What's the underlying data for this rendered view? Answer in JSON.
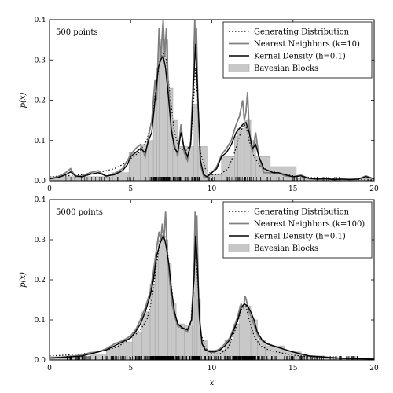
{
  "figure": {
    "xlabel": "x",
    "ylabel": "p(x)"
  },
  "colors": {
    "generating": "#000000",
    "nearest_neighbors": "#808080",
    "kernel_density": "#000000",
    "bayesian_blocks_fill": "#c8c8c8",
    "bayesian_blocks_edge": "#a6a6a6",
    "rug": "#000000"
  },
  "chart_data": [
    {
      "type": "line",
      "panel_label": "500 points",
      "xlim": [
        0,
        20
      ],
      "ylim": [
        0,
        0.4
      ],
      "xticks": [
        0,
        5,
        10,
        15,
        20
      ],
      "yticks": [
        0.0,
        0.1,
        0.2,
        0.3,
        0.4
      ],
      "xtick_labels": [
        "0",
        "5",
        "10",
        "15",
        "20"
      ],
      "ytick_labels": [
        "0.0",
        "0.1",
        "0.2",
        "0.3",
        "0.4"
      ],
      "legend_position": "top-right",
      "legend": [
        {
          "label": "Generating Distribution",
          "style": "dotted"
        },
        {
          "label": "Nearest Neighbors (k=10)",
          "style": "gray-line"
        },
        {
          "label": "Kernel Density (h=0.1)",
          "style": "black-line"
        },
        {
          "label": "Bayesian Blocks",
          "style": "filled-box"
        }
      ],
      "bayesian_blocks": [
        {
          "x0": 0.0,
          "x1": 3.9,
          "y": 0.01
        },
        {
          "x0": 3.9,
          "x1": 4.9,
          "y": 0.02
        },
        {
          "x0": 4.9,
          "x1": 5.6,
          "y": 0.07
        },
        {
          "x0": 5.6,
          "x1": 6.1,
          "y": 0.09
        },
        {
          "x0": 6.1,
          "x1": 6.4,
          "y": 0.1
        },
        {
          "x0": 6.4,
          "x1": 6.6,
          "y": 0.21
        },
        {
          "x0": 6.6,
          "x1": 6.75,
          "y": 0.28
        },
        {
          "x0": 6.75,
          "x1": 7.3,
          "y": 0.35
        },
        {
          "x0": 7.3,
          "x1": 7.6,
          "y": 0.23
        },
        {
          "x0": 7.6,
          "x1": 7.9,
          "y": 0.15
        },
        {
          "x0": 7.9,
          "x1": 8.9,
          "y": 0.085
        },
        {
          "x0": 8.9,
          "x1": 9.15,
          "y": 0.19
        },
        {
          "x0": 9.15,
          "x1": 9.7,
          "y": 0.085
        },
        {
          "x0": 9.7,
          "x1": 10.6,
          "y": 0.015
        },
        {
          "x0": 10.6,
          "x1": 11.4,
          "y": 0.06
        },
        {
          "x0": 11.4,
          "x1": 11.6,
          "y": 0.11
        },
        {
          "x0": 11.6,
          "x1": 12.0,
          "y": 0.13
        },
        {
          "x0": 12.0,
          "x1": 12.4,
          "y": 0.15
        },
        {
          "x0": 12.4,
          "x1": 12.7,
          "y": 0.1
        },
        {
          "x0": 12.7,
          "x1": 13.6,
          "y": 0.06
        },
        {
          "x0": 13.6,
          "x1": 15.2,
          "y": 0.035
        },
        {
          "x0": 15.2,
          "x1": 20.0,
          "y": 0.005
        }
      ],
      "kernel_density": {
        "x": [
          0,
          0.5,
          1.0,
          1.3,
          1.6,
          2.0,
          2.5,
          3.0,
          3.5,
          4.0,
          4.5,
          4.8,
          5.0,
          5.3,
          5.6,
          5.9,
          6.1,
          6.3,
          6.5,
          6.7,
          6.85,
          7.0,
          7.15,
          7.3,
          7.5,
          7.7,
          7.9,
          8.1,
          8.3,
          8.5,
          8.7,
          8.85,
          9.0,
          9.15,
          9.3,
          9.5,
          9.7,
          10.0,
          10.3,
          10.6,
          10.9,
          11.2,
          11.5,
          11.7,
          11.9,
          12.1,
          12.3,
          12.5,
          12.7,
          12.9,
          13.2,
          13.5,
          13.8,
          14.1,
          14.5,
          15.0,
          15.5,
          16.0,
          16.5,
          17.0,
          17.5,
          18.0,
          18.5,
          19.0,
          19.5,
          20.0
        ],
        "y": [
          0.005,
          0.008,
          0.015,
          0.022,
          0.012,
          0.01,
          0.016,
          0.02,
          0.012,
          0.015,
          0.025,
          0.04,
          0.06,
          0.07,
          0.08,
          0.07,
          0.1,
          0.12,
          0.2,
          0.28,
          0.3,
          0.31,
          0.28,
          0.22,
          0.13,
          0.08,
          0.07,
          0.12,
          0.08,
          0.06,
          0.09,
          0.22,
          0.34,
          0.2,
          0.05,
          0.015,
          0.01,
          0.02,
          0.03,
          0.06,
          0.07,
          0.09,
          0.12,
          0.13,
          0.14,
          0.145,
          0.12,
          0.08,
          0.09,
          0.06,
          0.03,
          0.025,
          0.02,
          0.02,
          0.015,
          0.01,
          0.012,
          0.006,
          0.004,
          0.005,
          0.003,
          0.004,
          0.003,
          0.004,
          0.01,
          0.005
        ]
      },
      "nearest_neighbors": {
        "x": [
          0,
          0.5,
          1.0,
          1.3,
          1.6,
          2.0,
          2.5,
          3.0,
          3.5,
          4.0,
          4.5,
          4.8,
          5.0,
          5.3,
          5.6,
          5.9,
          6.1,
          6.3,
          6.5,
          6.6,
          6.75,
          6.85,
          7.0,
          7.1,
          7.2,
          7.3,
          7.5,
          7.7,
          7.9,
          8.1,
          8.3,
          8.5,
          8.7,
          8.85,
          8.95,
          9.0,
          9.05,
          9.15,
          9.3,
          9.5,
          9.7,
          10.0,
          10.3,
          10.6,
          10.9,
          11.2,
          11.5,
          11.7,
          11.9,
          12.0,
          12.1,
          12.2,
          12.3,
          12.5,
          12.7,
          12.9,
          13.2,
          13.5,
          13.8,
          14.1,
          14.5,
          15.0,
          15.5,
          16.0,
          16.5,
          17.0,
          17.5,
          18.0,
          18.5,
          19.0,
          19.5,
          20.0
        ],
        "y": [
          0.004,
          0.01,
          0.02,
          0.03,
          0.01,
          0.012,
          0.02,
          0.025,
          0.01,
          0.018,
          0.03,
          0.05,
          0.065,
          0.08,
          0.09,
          0.06,
          0.11,
          0.15,
          0.25,
          0.2,
          0.38,
          0.3,
          0.4,
          0.31,
          0.38,
          0.25,
          0.12,
          0.09,
          0.06,
          0.14,
          0.07,
          0.05,
          0.1,
          0.25,
          0.4,
          0.3,
          0.38,
          0.18,
          0.04,
          0.01,
          0.008,
          0.02,
          0.035,
          0.065,
          0.08,
          0.1,
          0.14,
          0.16,
          0.2,
          0.15,
          0.17,
          0.22,
          0.13,
          0.07,
          0.12,
          0.06,
          0.02,
          0.02,
          0.018,
          0.02,
          0.012,
          0.01,
          0.014,
          0.005,
          0.004,
          0.005,
          0.003,
          0.004,
          0.003,
          0.004,
          0.012,
          0.004
        ]
      },
      "generating": {
        "x": [
          0,
          1,
          2,
          3,
          3.5,
          4,
          4.5,
          5,
          5.5,
          6,
          6.3,
          6.6,
          6.8,
          7.0,
          7.2,
          7.4,
          7.7,
          8.0,
          8.4,
          8.7,
          8.85,
          9.0,
          9.15,
          9.3,
          9.6,
          10.0,
          10.5,
          11.0,
          11.4,
          11.7,
          11.9,
          12.0,
          12.1,
          12.3,
          12.6,
          13.0,
          13.5,
          14.0,
          15.0,
          16.0,
          18.0,
          20.0
        ],
        "y": [
          0.01,
          0.012,
          0.015,
          0.02,
          0.025,
          0.03,
          0.04,
          0.055,
          0.07,
          0.1,
          0.15,
          0.24,
          0.3,
          0.32,
          0.3,
          0.22,
          0.12,
          0.08,
          0.075,
          0.09,
          0.18,
          0.28,
          0.18,
          0.07,
          0.03,
          0.015,
          0.015,
          0.03,
          0.07,
          0.11,
          0.135,
          0.14,
          0.135,
          0.1,
          0.06,
          0.035,
          0.025,
          0.02,
          0.012,
          0.008,
          0.004,
          0.002
        ]
      }
    },
    {
      "type": "line",
      "panel_label": "5000 points",
      "xlim": [
        0,
        20
      ],
      "ylim": [
        0,
        0.4
      ],
      "xticks": [
        0,
        5,
        10,
        15,
        20
      ],
      "yticks": [
        0.0,
        0.1,
        0.2,
        0.3,
        0.4
      ],
      "xtick_labels": [
        "0",
        "5",
        "10",
        "15",
        "20"
      ],
      "ytick_labels": [
        "0.0",
        "0.1",
        "0.2",
        "0.3",
        "0.4"
      ],
      "legend_position": "top-right",
      "legend": [
        {
          "label": "Generating Distribution",
          "style": "dotted"
        },
        {
          "label": "Nearest Neighbors (k=100)",
          "style": "gray-line"
        },
        {
          "label": "Kernel Density (h=0.1)",
          "style": "black-line"
        },
        {
          "label": "Bayesian Blocks",
          "style": "filled-box"
        }
      ],
      "bayesian_blocks": [
        {
          "x0": 0.0,
          "x1": 2.5,
          "y": 0.008
        },
        {
          "x0": 2.5,
          "x1": 3.5,
          "y": 0.015
        },
        {
          "x0": 3.5,
          "x1": 4.3,
          "y": 0.03
        },
        {
          "x0": 4.3,
          "x1": 5.1,
          "y": 0.045
        },
        {
          "x0": 5.1,
          "x1": 5.7,
          "y": 0.07
        },
        {
          "x0": 5.7,
          "x1": 6.2,
          "y": 0.12
        },
        {
          "x0": 6.2,
          "x1": 6.5,
          "y": 0.19
        },
        {
          "x0": 6.5,
          "x1": 6.7,
          "y": 0.25
        },
        {
          "x0": 6.7,
          "x1": 7.3,
          "y": 0.3
        },
        {
          "x0": 7.3,
          "x1": 7.5,
          "y": 0.24
        },
        {
          "x0": 7.5,
          "x1": 7.8,
          "y": 0.14
        },
        {
          "x0": 7.8,
          "x1": 8.3,
          "y": 0.09
        },
        {
          "x0": 8.3,
          "x1": 8.8,
          "y": 0.085
        },
        {
          "x0": 8.8,
          "x1": 8.95,
          "y": 0.17
        },
        {
          "x0": 8.95,
          "x1": 9.1,
          "y": 0.33
        },
        {
          "x0": 9.1,
          "x1": 9.3,
          "y": 0.15
        },
        {
          "x0": 9.3,
          "x1": 9.7,
          "y": 0.05
        },
        {
          "x0": 9.7,
          "x1": 10.8,
          "y": 0.025
        },
        {
          "x0": 10.8,
          "x1": 11.3,
          "y": 0.05
        },
        {
          "x0": 11.3,
          "x1": 11.7,
          "y": 0.09
        },
        {
          "x0": 11.7,
          "x1": 12.4,
          "y": 0.135
        },
        {
          "x0": 12.4,
          "x1": 12.8,
          "y": 0.1
        },
        {
          "x0": 12.8,
          "x1": 13.3,
          "y": 0.05
        },
        {
          "x0": 13.3,
          "x1": 14.5,
          "y": 0.035
        },
        {
          "x0": 14.5,
          "x1": 15.5,
          "y": 0.02
        },
        {
          "x0": 15.5,
          "x1": 17.0,
          "y": 0.01
        },
        {
          "x0": 17.0,
          "x1": 20.0,
          "y": 0.004
        }
      ],
      "kernel_density": {
        "x": [
          0,
          1,
          2,
          2.5,
          3,
          3.5,
          4,
          4.5,
          5,
          5.3,
          5.6,
          5.9,
          6.2,
          6.4,
          6.6,
          6.8,
          6.9,
          7.0,
          7.1,
          7.2,
          7.35,
          7.5,
          7.7,
          7.9,
          8.2,
          8.5,
          8.75,
          8.9,
          9.0,
          9.1,
          9.25,
          9.4,
          9.6,
          9.9,
          10.2,
          10.5,
          10.8,
          11.1,
          11.4,
          11.6,
          11.8,
          12.0,
          12.2,
          12.4,
          12.6,
          12.8,
          13.1,
          13.4,
          13.8,
          14.2,
          14.6,
          15.0,
          15.5,
          16.0,
          17.0,
          18.0,
          19.0,
          20.0
        ],
        "y": [
          0.005,
          0.007,
          0.01,
          0.015,
          0.02,
          0.025,
          0.035,
          0.045,
          0.055,
          0.07,
          0.09,
          0.12,
          0.16,
          0.2,
          0.26,
          0.29,
          0.3,
          0.31,
          0.3,
          0.28,
          0.24,
          0.18,
          0.12,
          0.09,
          0.08,
          0.075,
          0.1,
          0.2,
          0.31,
          0.25,
          0.1,
          0.04,
          0.025,
          0.02,
          0.02,
          0.025,
          0.035,
          0.05,
          0.08,
          0.1,
          0.13,
          0.14,
          0.135,
          0.12,
          0.1,
          0.07,
          0.05,
          0.04,
          0.035,
          0.03,
          0.025,
          0.02,
          0.015,
          0.01,
          0.007,
          0.004,
          0.003,
          0.002
        ]
      },
      "nearest_neighbors": {
        "x": [
          0,
          1,
          2,
          2.5,
          3,
          3.5,
          4,
          4.5,
          5,
          5.3,
          5.6,
          5.9,
          6.2,
          6.4,
          6.6,
          6.75,
          6.85,
          6.95,
          7.05,
          7.15,
          7.25,
          7.4,
          7.55,
          7.7,
          7.9,
          8.2,
          8.5,
          8.75,
          8.9,
          8.97,
          9.02,
          9.08,
          9.2,
          9.4,
          9.6,
          9.9,
          10.2,
          10.5,
          10.8,
          11.1,
          11.4,
          11.6,
          11.8,
          11.95,
          12.05,
          12.15,
          12.3,
          12.5,
          12.7,
          12.9,
          13.2,
          13.5,
          13.8,
          14.2,
          14.6,
          15.0,
          15.5,
          16.0,
          17.0,
          18.0,
          19.0,
          20.0
        ],
        "y": [
          0.004,
          0.008,
          0.012,
          0.018,
          0.02,
          0.028,
          0.04,
          0.048,
          0.06,
          0.075,
          0.1,
          0.13,
          0.17,
          0.22,
          0.28,
          0.32,
          0.3,
          0.34,
          0.3,
          0.37,
          0.27,
          0.2,
          0.14,
          0.11,
          0.085,
          0.08,
          0.07,
          0.1,
          0.22,
          0.37,
          0.25,
          0.36,
          0.12,
          0.04,
          0.025,
          0.02,
          0.022,
          0.028,
          0.04,
          0.055,
          0.085,
          0.11,
          0.14,
          0.13,
          0.16,
          0.145,
          0.12,
          0.1,
          0.075,
          0.055,
          0.045,
          0.04,
          0.035,
          0.03,
          0.024,
          0.02,
          0.014,
          0.01,
          0.007,
          0.004,
          0.003,
          0.002
        ]
      },
      "generating": {
        "x": [
          0,
          1,
          2,
          3,
          3.5,
          4,
          4.5,
          5,
          5.5,
          6,
          6.3,
          6.6,
          6.8,
          7.0,
          7.2,
          7.4,
          7.7,
          8.0,
          8.4,
          8.7,
          8.85,
          9.0,
          9.15,
          9.3,
          9.6,
          10.0,
          10.5,
          11.0,
          11.4,
          11.7,
          11.9,
          12.0,
          12.1,
          12.3,
          12.6,
          13.0,
          13.5,
          14.0,
          15.0,
          16.0,
          18.0,
          20.0
        ],
        "y": [
          0.01,
          0.012,
          0.015,
          0.02,
          0.025,
          0.03,
          0.04,
          0.055,
          0.07,
          0.1,
          0.15,
          0.24,
          0.3,
          0.32,
          0.3,
          0.22,
          0.12,
          0.08,
          0.075,
          0.09,
          0.18,
          0.28,
          0.18,
          0.07,
          0.03,
          0.015,
          0.015,
          0.03,
          0.07,
          0.11,
          0.135,
          0.14,
          0.135,
          0.1,
          0.06,
          0.035,
          0.025,
          0.02,
          0.012,
          0.008,
          0.004,
          0.002
        ]
      }
    }
  ]
}
